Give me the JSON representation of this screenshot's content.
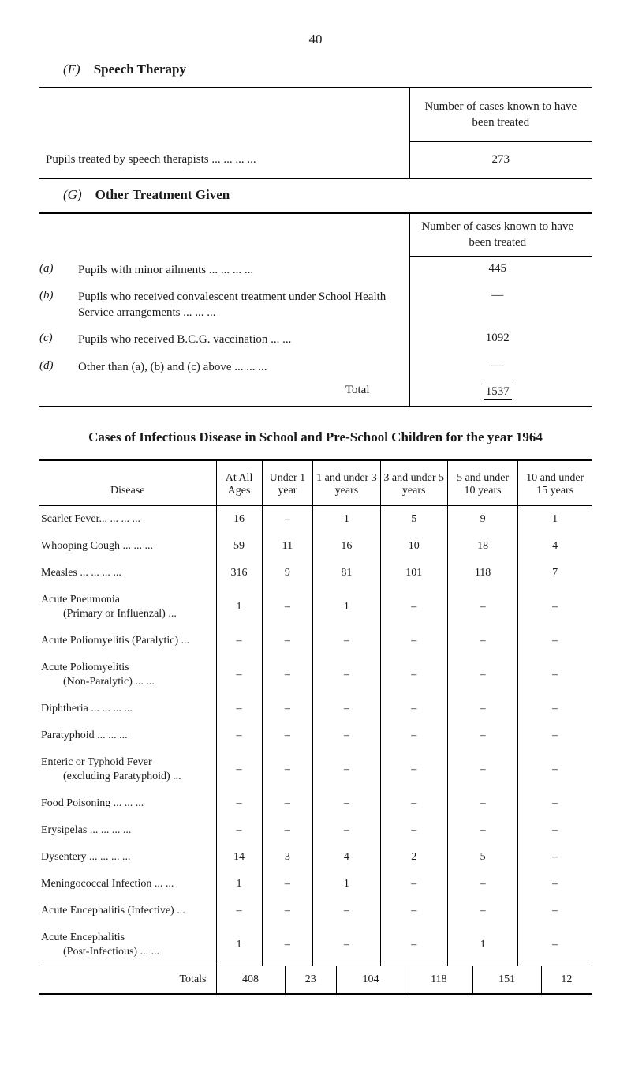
{
  "page_number": "40",
  "section_f": {
    "label": "(F)",
    "title": "Speech Therapy",
    "header_note": "Number of cases known to have been treated",
    "row_label": "Pupils treated by speech therapists ...   ...   ...   ...",
    "row_value": "273"
  },
  "section_g": {
    "label": "(G)",
    "title": "Other Treatment Given",
    "header_note": "Number of cases known to have been treated",
    "items": [
      {
        "marker": "(a)",
        "text": "Pupils with minor ailments   ...   ...   ...   ...",
        "value": "445"
      },
      {
        "marker": "(b)",
        "text": "Pupils who received convalescent treatment under School Health Service arrangements   ...   ...   ...",
        "value": "—"
      },
      {
        "marker": "(c)",
        "text": "Pupils who received B.C.G. vaccination   ...   ...",
        "value": "1092"
      },
      {
        "marker": "(d)",
        "text": "Other than (a), (b) and (c) above   ...   ...   ...",
        "value": "—"
      }
    ],
    "total_label": "Total",
    "total_value": "1537"
  },
  "cases": {
    "title": "Cases of Infectious Disease in School and Pre-School Children for the year 1964",
    "columns": [
      "Disease",
      "At All Ages",
      "Under 1 year",
      "1 and under 3 years",
      "3 and under 5 years",
      "5 and under 10 years",
      "10 and under 15 years"
    ],
    "rows": [
      {
        "disease": "Scarlet Fever...   ...   ...   ...",
        "sub": "",
        "v": [
          "16",
          "–",
          "1",
          "5",
          "9",
          "1"
        ]
      },
      {
        "disease": "Whooping Cough   ...   ...   ...",
        "sub": "",
        "v": [
          "59",
          "11",
          "16",
          "10",
          "18",
          "4"
        ]
      },
      {
        "disease": "Measles   ...   ...   ...   ...",
        "sub": "",
        "v": [
          "316",
          "9",
          "81",
          "101",
          "118",
          "7"
        ]
      },
      {
        "disease": "Acute Pneumonia",
        "sub": "(Primary or Influenzal)   ...",
        "v": [
          "1",
          "–",
          "1",
          "–",
          "–",
          "–"
        ]
      },
      {
        "disease": "Acute Poliomyelitis (Paralytic)   ...",
        "sub": "",
        "v": [
          "–",
          "–",
          "–",
          "–",
          "–",
          "–"
        ]
      },
      {
        "disease": "Acute Poliomyelitis",
        "sub": "(Non-Paralytic)   ...   ...",
        "v": [
          "–",
          "–",
          "–",
          "–",
          "–",
          "–"
        ]
      },
      {
        "disease": "Diphtheria   ...   ...   ...   ...",
        "sub": "",
        "v": [
          "–",
          "–",
          "–",
          "–",
          "–",
          "–"
        ]
      },
      {
        "disease": "Paratyphoid   ...   ...   ...",
        "sub": "",
        "v": [
          "–",
          "–",
          "–",
          "–",
          "–",
          "–"
        ]
      },
      {
        "disease": "Enteric or Typhoid Fever",
        "sub": "(excluding Paratyphoid)   ...",
        "v": [
          "–",
          "–",
          "–",
          "–",
          "–",
          "–"
        ]
      },
      {
        "disease": "Food Poisoning   ...   ...   ...",
        "sub": "",
        "v": [
          "–",
          "–",
          "–",
          "–",
          "–",
          "–"
        ]
      },
      {
        "disease": "Erysipelas   ...   ...   ...   ...",
        "sub": "",
        "v": [
          "–",
          "–",
          "–",
          "–",
          "–",
          "–"
        ]
      },
      {
        "disease": "Dysentery   ...   ...   ...   ...",
        "sub": "",
        "v": [
          "14",
          "3",
          "4",
          "2",
          "5",
          "–"
        ]
      },
      {
        "disease": "Meningococcal Infection   ...   ...",
        "sub": "",
        "v": [
          "1",
          "–",
          "1",
          "–",
          "–",
          "–"
        ]
      },
      {
        "disease": "Acute Encephalitis (Infective)   ...",
        "sub": "",
        "v": [
          "–",
          "–",
          "–",
          "–",
          "–",
          "–"
        ]
      },
      {
        "disease": "Acute Encephalitis",
        "sub": "(Post-Infectious)   ...   ...",
        "v": [
          "1",
          "–",
          "–",
          "–",
          "1",
          "–"
        ]
      }
    ],
    "totals_label": "Totals",
    "totals": [
      "408",
      "23",
      "104",
      "118",
      "151",
      "12"
    ]
  }
}
